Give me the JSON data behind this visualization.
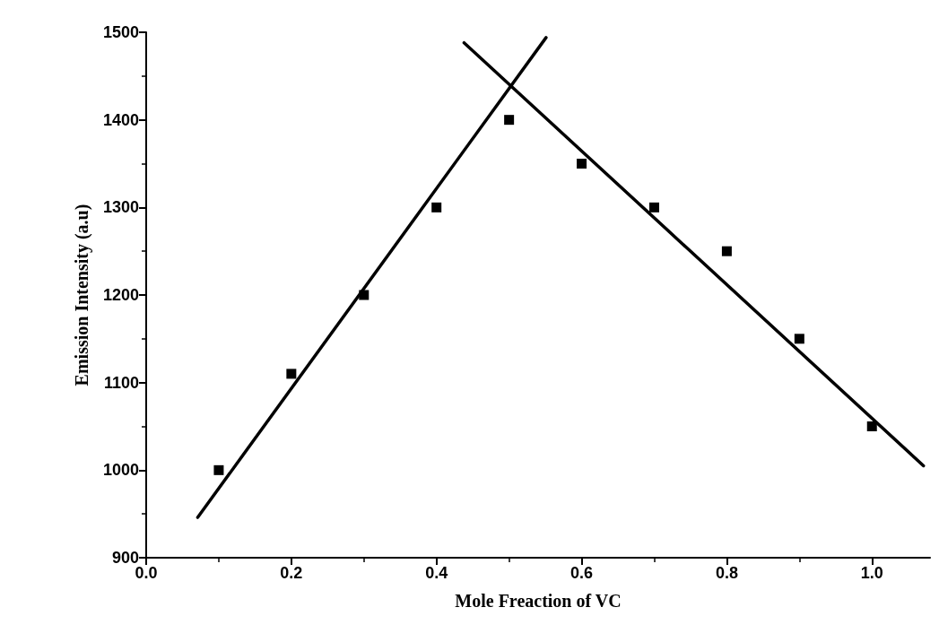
{
  "chart_data": {
    "type": "scatter",
    "xlabel": "Mole Freaction of VC",
    "ylabel": "Emission Intensity (a.u)",
    "marker": "square",
    "grid": false,
    "xlim": [
      0,
      1.08
    ],
    "xticks": [
      {
        "value": 0,
        "label": "0.0"
      },
      {
        "value": 0.2,
        "label": "0.2"
      },
      {
        "value": 0.4,
        "label": "0.4"
      },
      {
        "value": 0.6,
        "label": "0.6"
      },
      {
        "value": 0.8,
        "label": "0.8"
      },
      {
        "value": 1,
        "label": "1.0"
      }
    ],
    "ylim": [
      900,
      1500
    ],
    "yticks": [
      900,
      1000,
      1100,
      1200,
      1300,
      1400,
      1500
    ],
    "series": [
      {
        "color": "#000000",
        "x": [
          0.1,
          0.2,
          0.3,
          0.4,
          0.5,
          0.6,
          0.7,
          0.8,
          0.9,
          1.0
        ],
        "values": [
          1000,
          1110,
          1200,
          1300,
          1400,
          1350,
          1300,
          1250,
          1150,
          1050
        ]
      },
      {
        "type": "line",
        "color": "#000000",
        "marker": "none",
        "x": [
          0.071,
          0.551
        ],
        "values": [
          946,
          1494
        ]
      },
      {
        "type": "line",
        "color": "#000000",
        "marker": "none",
        "x": [
          0.438,
          1.071
        ],
        "values": [
          1488,
          1005
        ]
      }
    ]
  }
}
